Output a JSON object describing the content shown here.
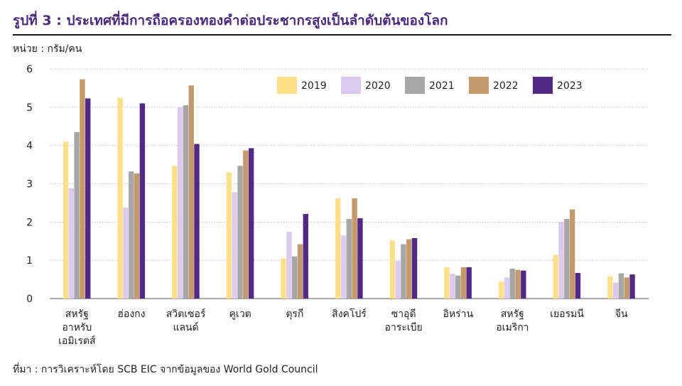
{
  "title": "รูปที่ 3 : ประเทศที่มีการถือครองทองคำต่อประชากรสูงเป็นลำดับต้นของโลก",
  "unit_label": "หน่วย : กรัม/คน",
  "source_note": "ที่มา : การวิเคราะห์โดย SCB EIC จากข้อมูลของ World Gold Council",
  "chart_data": {
    "type": "bar",
    "title": "รูปที่ 3 : ประเทศที่มีการถือครองทองคำต่อประชากรสูงเป็นลำดับต้นของโลก",
    "ylabel": "หน่วย : กรัม/คน",
    "xlabel": "",
    "ylim": [
      0,
      6
    ],
    "yticks": [
      0,
      1,
      2,
      3,
      4,
      5,
      6
    ],
    "grid": true,
    "legend_position": "top-right",
    "categories": [
      [
        "สหรัฐ",
        "อาหรับ",
        "เอมิเรตส์"
      ],
      [
        "ฮ่องกง"
      ],
      [
        "สวิตเซอร์",
        "แลนด์"
      ],
      [
        "คูเวต"
      ],
      [
        "ตุรกี"
      ],
      [
        "สิงคโปร์"
      ],
      [
        "ซาอุดี",
        "อาระเบีย"
      ],
      [
        "อิหร่าน"
      ],
      [
        "สหรัฐ",
        "อเมริกา"
      ],
      [
        "เยอรมนี"
      ],
      [
        "จีน"
      ]
    ],
    "series": [
      {
        "name": "2019",
        "color": "#ffe08a",
        "values": [
          4.1,
          5.25,
          3.47,
          3.3,
          1.05,
          2.62,
          1.52,
          0.82,
          0.44,
          1.14,
          0.58
        ]
      },
      {
        "name": "2020",
        "color": "#dccbee",
        "values": [
          2.88,
          2.38,
          5.0,
          2.78,
          1.75,
          1.65,
          0.98,
          0.65,
          0.55,
          2.0,
          0.42
        ]
      },
      {
        "name": "2021",
        "color": "#a6a6a6",
        "values": [
          4.35,
          3.32,
          5.05,
          3.47,
          1.1,
          2.08,
          1.42,
          0.6,
          0.78,
          2.08,
          0.66
        ]
      },
      {
        "name": "2022",
        "color": "#c49a6c",
        "values": [
          5.73,
          3.27,
          5.57,
          3.87,
          1.42,
          2.62,
          1.55,
          0.82,
          0.75,
          2.33,
          0.55
        ]
      },
      {
        "name": "2023",
        "color": "#522a85",
        "values": [
          5.23,
          5.1,
          4.04,
          3.93,
          2.21,
          2.1,
          1.58,
          0.82,
          0.73,
          0.67,
          0.63
        ]
      }
    ]
  }
}
